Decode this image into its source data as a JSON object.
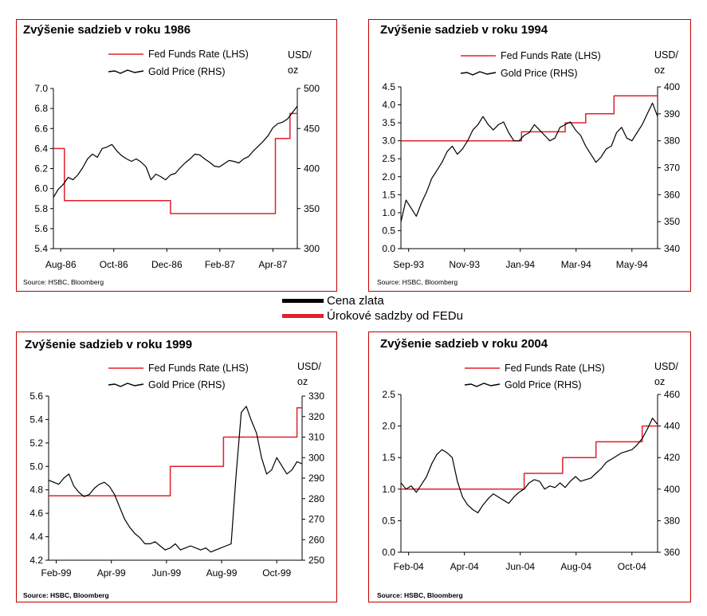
{
  "legend": {
    "gold": {
      "label": "Cena zlata",
      "color": "#000000"
    },
    "rates": {
      "label": "Úrokové sadzby od FEDu",
      "color": "#e0202a"
    }
  },
  "chart_data": [
    {
      "type": "line",
      "title": "Zvýšenie sadzieb v roku 1986",
      "source": "Source: HSBC, Bloomberg",
      "lhs_ticks": [
        "7.0",
        "6.8",
        "6.6",
        "6.4",
        "6.2",
        "6.0",
        "5.8",
        "5.6",
        "5.4"
      ],
      "rhs_ticks": [
        "500",
        "450",
        "400",
        "350",
        "300"
      ],
      "rhs_unit": "USD/ oz",
      "ylim_lhs": [
        5.4,
        7.0
      ],
      "ylim_rhs": [
        300,
        500
      ],
      "x_ticks": [
        "Aug-86",
        "Oct-86",
        "Dec-86",
        "Feb-87",
        "Apr-87"
      ],
      "series": [
        {
          "name": "Fed Funds Rate (LHS)",
          "axis": "lhs",
          "color": "#e0202a",
          "x": [
            0.0,
            0.045,
            0.045,
            0.48,
            0.48,
            0.91,
            0.91,
            0.97,
            0.97,
            1.0
          ],
          "y": [
            6.4,
            6.4,
            5.88,
            5.88,
            5.75,
            5.75,
            6.5,
            6.5,
            6.75,
            6.75
          ]
        },
        {
          "name": "Gold Price (RHS)",
          "axis": "rhs",
          "color": "#000000",
          "x": [
            0.0,
            0.02,
            0.04,
            0.06,
            0.08,
            0.1,
            0.12,
            0.14,
            0.16,
            0.18,
            0.2,
            0.22,
            0.24,
            0.26,
            0.28,
            0.3,
            0.32,
            0.34,
            0.36,
            0.38,
            0.4,
            0.42,
            0.44,
            0.46,
            0.48,
            0.5,
            0.52,
            0.54,
            0.56,
            0.58,
            0.6,
            0.62,
            0.64,
            0.66,
            0.68,
            0.7,
            0.72,
            0.74,
            0.76,
            0.78,
            0.8,
            0.82,
            0.84,
            0.86,
            0.88,
            0.9,
            0.92,
            0.94,
            0.96,
            0.98,
            1.0
          ],
          "y": [
            364,
            374,
            380,
            389,
            386,
            392,
            401,
            412,
            418,
            414,
            425,
            427,
            430,
            422,
            416,
            412,
            409,
            412,
            408,
            402,
            386,
            393,
            390,
            386,
            392,
            394,
            401,
            407,
            412,
            418,
            417,
            412,
            408,
            403,
            402,
            406,
            410,
            409,
            407,
            412,
            415,
            422,
            428,
            434,
            441,
            451,
            456,
            458,
            462,
            470,
            478
          ]
        }
      ]
    },
    {
      "type": "line",
      "title": "Zvýšenie sadzieb v roku 1994",
      "source": "Source: HSBC, Bloomberg",
      "lhs_ticks": [
        "4.5",
        "4.0",
        "3.5",
        "3.0",
        "2.5",
        "2.0",
        "1.5",
        "1.0",
        "0.5",
        "0.0"
      ],
      "rhs_ticks": [
        "400",
        "390",
        "380",
        "370",
        "360",
        "350",
        "340"
      ],
      "rhs_unit": "USD/ oz",
      "ylim_lhs": [
        0.0,
        4.5
      ],
      "ylim_rhs": [
        340,
        400
      ],
      "x_ticks": [
        "Sep-93",
        "Nov-93",
        "Jan-94",
        "Mar-94",
        "May-94"
      ],
      "series": [
        {
          "name": "Fed Funds Rate (LHS)",
          "axis": "lhs",
          "color": "#e0202a",
          "x": [
            0.0,
            0.47,
            0.47,
            0.64,
            0.64,
            0.72,
            0.72,
            0.83,
            0.83,
            0.94,
            0.94,
            1.0
          ],
          "y": [
            3.0,
            3.0,
            3.25,
            3.25,
            3.5,
            3.5,
            3.75,
            3.75,
            4.25,
            4.25,
            4.25,
            4.25
          ]
        },
        {
          "name": "Gold Price (RHS)",
          "axis": "rhs",
          "color": "#000000",
          "x": [
            0.0,
            0.02,
            0.04,
            0.06,
            0.08,
            0.1,
            0.12,
            0.14,
            0.16,
            0.18,
            0.2,
            0.22,
            0.24,
            0.26,
            0.28,
            0.3,
            0.32,
            0.34,
            0.36,
            0.38,
            0.4,
            0.42,
            0.44,
            0.46,
            0.48,
            0.5,
            0.52,
            0.54,
            0.56,
            0.58,
            0.6,
            0.62,
            0.64,
            0.66,
            0.68,
            0.7,
            0.72,
            0.74,
            0.76,
            0.78,
            0.8,
            0.82,
            0.84,
            0.86,
            0.88,
            0.9,
            0.92,
            0.94,
            0.96,
            0.98,
            1.0
          ],
          "y": [
            350,
            358,
            355,
            352,
            357,
            361,
            366,
            369,
            372,
            376,
            378,
            375,
            377,
            380,
            384,
            386,
            389,
            386,
            384,
            386,
            387,
            383,
            380,
            380,
            382,
            383,
            386,
            384,
            382,
            380,
            381,
            385,
            386,
            387,
            384,
            382,
            378,
            375,
            372,
            374,
            377,
            378,
            383,
            385,
            381,
            380,
            383,
            386,
            390,
            394,
            389
          ]
        }
      ]
    },
    {
      "type": "line",
      "title": "Zvýšenie sadzieb v roku 1999",
      "source": "Source: HSBC, Bloomberg",
      "lhs_ticks": [
        "5.6",
        "5.4",
        "5.2",
        "5.0",
        "4.8",
        "4.6",
        "4.4",
        "4.2"
      ],
      "rhs_ticks": [
        "330",
        "320",
        "310",
        "300",
        "290",
        "280",
        "270",
        "260",
        "250"
      ],
      "rhs_unit": "USD/ oz",
      "ylim_lhs": [
        4.2,
        5.6
      ],
      "ylim_rhs": [
        250,
        330
      ],
      "x_ticks": [
        "Feb-99",
        "Apr-99",
        "Jun-99",
        "Aug-99",
        "Oct-99"
      ],
      "series": [
        {
          "name": "Fed Funds Rate (LHS)",
          "axis": "lhs",
          "color": "#e0202a",
          "x": [
            0.0,
            0.48,
            0.48,
            0.69,
            0.69,
            0.98,
            0.98,
            1.0
          ],
          "y": [
            4.75,
            4.75,
            5.0,
            5.0,
            5.25,
            5.25,
            5.5,
            5.5
          ]
        },
        {
          "name": "Gold Price (RHS)",
          "axis": "rhs",
          "color": "#000000",
          "x": [
            0.0,
            0.02,
            0.04,
            0.06,
            0.08,
            0.1,
            0.12,
            0.14,
            0.16,
            0.18,
            0.2,
            0.22,
            0.24,
            0.26,
            0.28,
            0.3,
            0.32,
            0.34,
            0.36,
            0.38,
            0.4,
            0.42,
            0.44,
            0.46,
            0.48,
            0.5,
            0.52,
            0.54,
            0.56,
            0.58,
            0.6,
            0.62,
            0.64,
            0.66,
            0.68,
            0.7,
            0.72,
            0.74,
            0.76,
            0.78,
            0.8,
            0.82,
            0.84,
            0.86,
            0.88,
            0.9,
            0.92,
            0.94,
            0.96,
            0.98,
            1.0
          ],
          "y": [
            289,
            288,
            287,
            290,
            292,
            286,
            283,
            281,
            282,
            285,
            287,
            288,
            286,
            282,
            276,
            270,
            266,
            263,
            261,
            258,
            258,
            259,
            257,
            255,
            256,
            258,
            255,
            256,
            257,
            256,
            255,
            256,
            254,
            255,
            256,
            257,
            258,
            292,
            322,
            325,
            318,
            312,
            300,
            292,
            294,
            300,
            296,
            292,
            294,
            298,
            297
          ]
        }
      ]
    },
    {
      "type": "line",
      "title": "Zvýšenie sadzieb v roku 2004",
      "source": "Source: HSBC, Bloomberg",
      "lhs_ticks": [
        "2.5",
        "2.0",
        "1.5",
        "1.0",
        "0.5",
        "0.0"
      ],
      "rhs_ticks": [
        "460",
        "440",
        "420",
        "400",
        "380",
        "360"
      ],
      "rhs_unit": "USD/ oz",
      "ylim_lhs": [
        0.0,
        2.5
      ],
      "ylim_rhs": [
        360,
        460
      ],
      "x_ticks": [
        "Feb-04",
        "Apr-04",
        "Jun-04",
        "Aug-04",
        "Oct-04"
      ],
      "series": [
        {
          "name": "Fed Funds Rate (LHS)",
          "axis": "lhs",
          "color": "#e0202a",
          "x": [
            0.0,
            0.48,
            0.48,
            0.63,
            0.63,
            0.76,
            0.76,
            0.94,
            0.94,
            0.98,
            0.98,
            1.0
          ],
          "y": [
            1.0,
            1.0,
            1.25,
            1.25,
            1.5,
            1.5,
            1.75,
            1.75,
            2.0,
            2.0,
            2.0,
            2.0
          ]
        },
        {
          "name": "Gold Price (RHS)",
          "axis": "rhs",
          "color": "#000000",
          "x": [
            0.0,
            0.02,
            0.04,
            0.06,
            0.08,
            0.1,
            0.12,
            0.14,
            0.16,
            0.18,
            0.2,
            0.22,
            0.24,
            0.26,
            0.28,
            0.3,
            0.32,
            0.34,
            0.36,
            0.38,
            0.4,
            0.42,
            0.44,
            0.46,
            0.48,
            0.5,
            0.52,
            0.54,
            0.56,
            0.58,
            0.6,
            0.62,
            0.64,
            0.66,
            0.68,
            0.7,
            0.72,
            0.74,
            0.76,
            0.78,
            0.8,
            0.82,
            0.84,
            0.86,
            0.88,
            0.9,
            0.92,
            0.94,
            0.96,
            0.98,
            1.0
          ],
          "y": [
            404,
            400,
            402,
            398,
            403,
            408,
            416,
            422,
            425,
            423,
            420,
            405,
            395,
            390,
            387,
            385,
            390,
            394,
            397,
            395,
            393,
            391,
            395,
            398,
            400,
            404,
            406,
            405,
            400,
            402,
            401,
            404,
            401,
            405,
            408,
            405,
            406,
            407,
            410,
            413,
            417,
            419,
            421,
            423,
            424,
            425,
            428,
            432,
            438,
            445,
            441
          ]
        }
      ]
    }
  ]
}
